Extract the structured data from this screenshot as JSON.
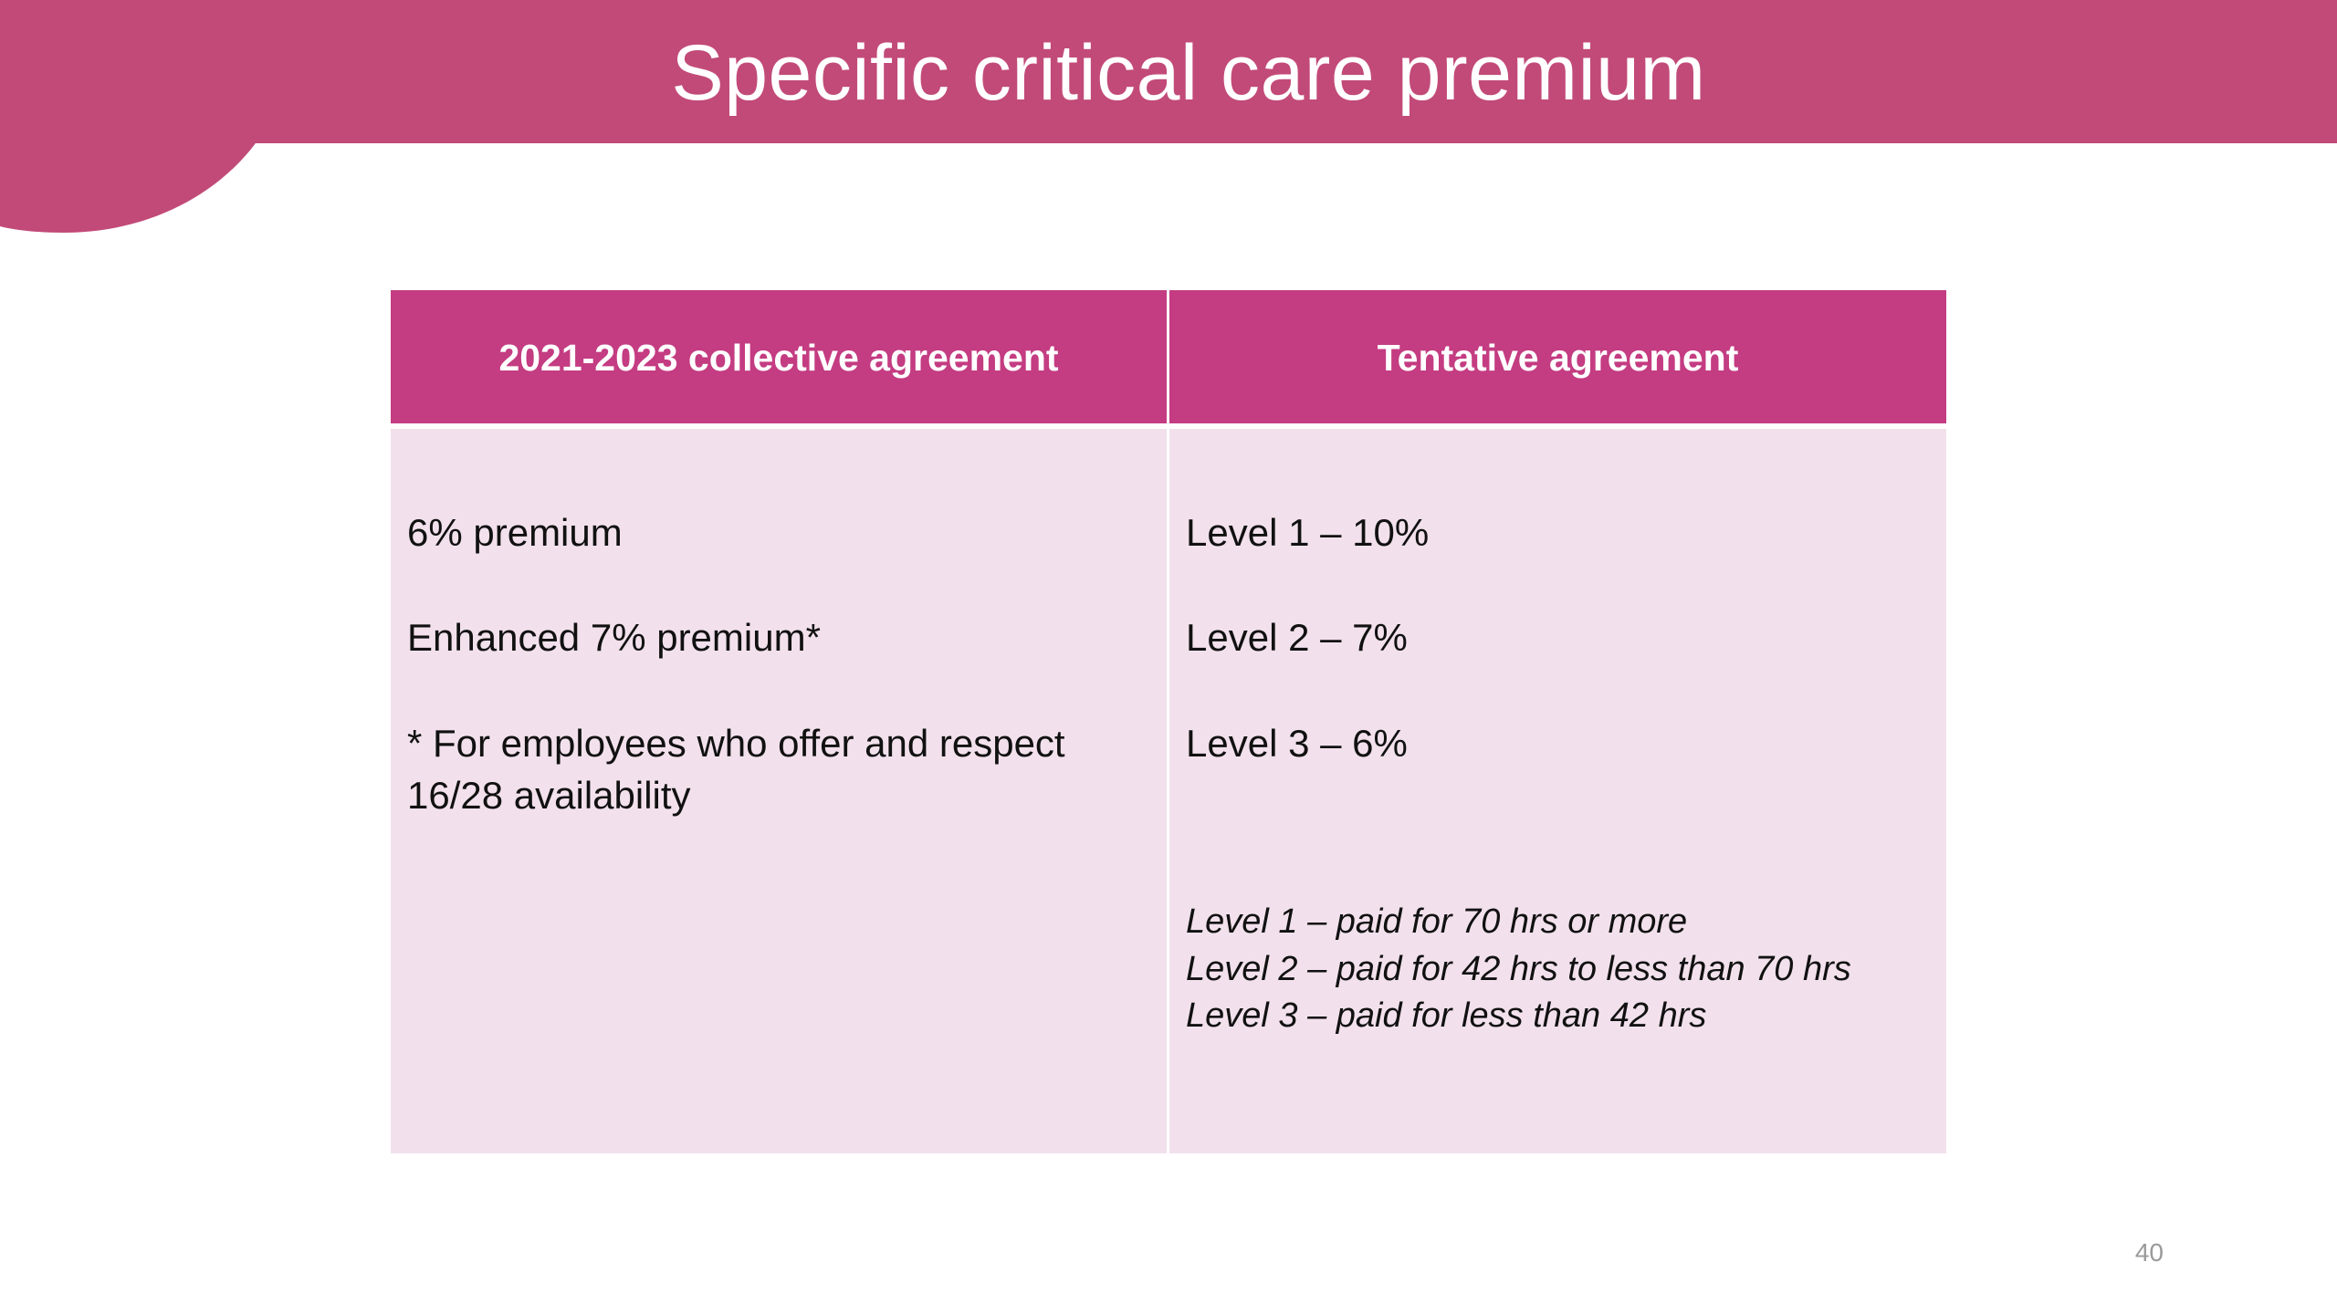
{
  "slide": {
    "title": "Specific critical care premium",
    "page_number": "40"
  },
  "colors": {
    "title_band": "#c24a78",
    "table_header": "#c43c82",
    "table_body": "#f2e1ec",
    "text": "#111111"
  },
  "table": {
    "columns": [
      {
        "header": "2021-2023 collective agreement",
        "lines": [
          "6% premium",
          "Enhanced 7% premium*",
          "* For employees who offer and respect",
          "16/28 availability"
        ]
      },
      {
        "header": "Tentative agreement",
        "lines": [
          "Level 1 – 10%",
          "Level 2 – 7%",
          "Level 3 – 6%"
        ],
        "notes": [
          "Level 1 – paid for 70 hrs or more",
          "Level 2 – paid for 42 hrs to less than 70 hrs",
          "Level 3 – paid for less than 42 hrs"
        ]
      }
    ]
  }
}
